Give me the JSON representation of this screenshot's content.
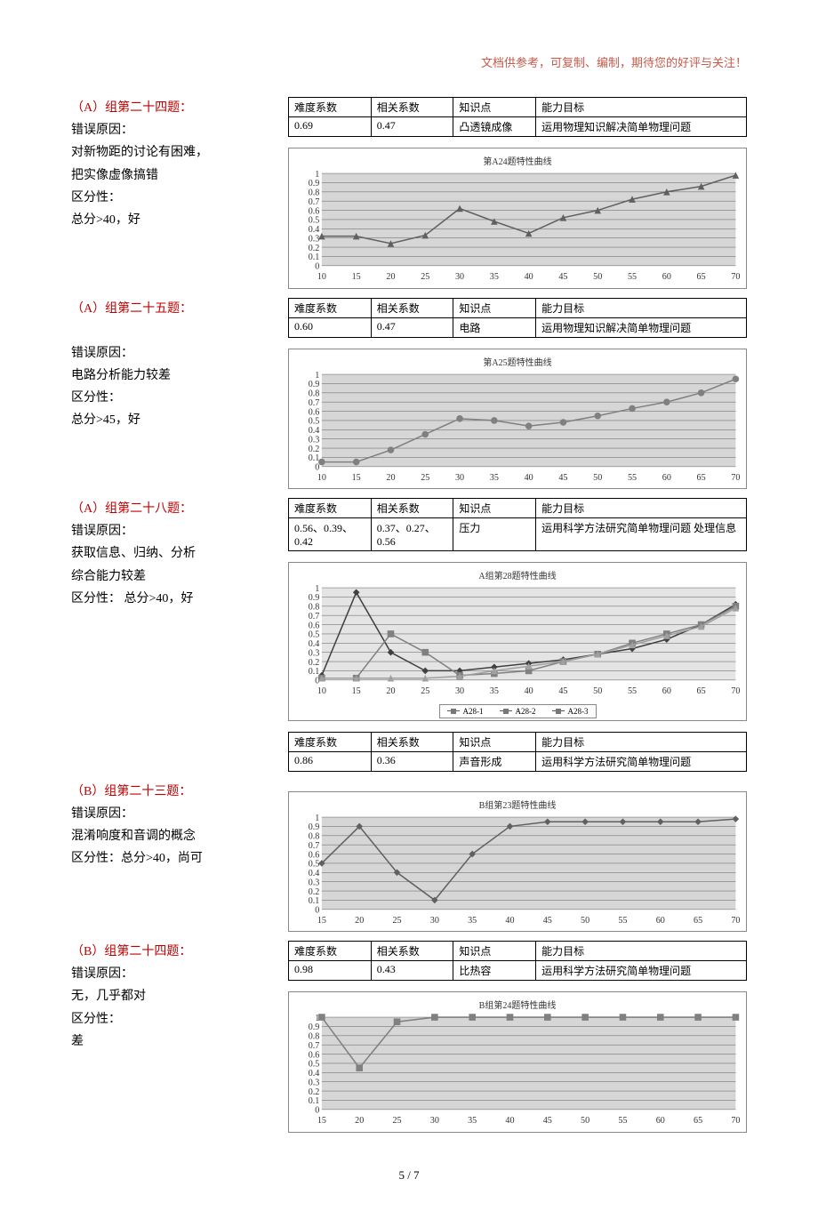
{
  "header_note": "文档供参考，可复制、编制，期待您的好评与关注！",
  "page_number": "5 / 7",
  "sections": [
    {
      "title": "（A）组第二十四题：",
      "lines": [
        "错误原因：",
        "对新物距的讨论有困难，",
        "把实像虚像搞错",
        "区分性：",
        "总分>40，好"
      ],
      "table_headers": [
        "难度系数",
        "相关系数",
        "知识点",
        "能力目标"
      ],
      "table_row": [
        "0.69",
        "0.47",
        "凸透镜成像",
        "运用物理知识解决简单物理问题"
      ],
      "chart": {
        "title": "第A24题特性曲线",
        "bg": "dark",
        "x": [
          10,
          15,
          20,
          25,
          30,
          35,
          40,
          45,
          50,
          55,
          60,
          65,
          70
        ],
        "series": [
          {
            "color": "#606060",
            "marker": "triangle",
            "y": [
              0.32,
              0.32,
              0.24,
              0.33,
              0.62,
              0.48,
              0.35,
              0.52,
              0.6,
              0.72,
              0.8,
              0.86,
              0.98
            ]
          }
        ],
        "ymax": 1.0
      }
    },
    {
      "title": "（A）组第二十五题：",
      "lines": [
        "",
        "错误原因：",
        "电路分析能力较差",
        "区分性：",
        "总分>45，好"
      ],
      "table_headers": [
        "难度系数",
        "相关系数",
        "知识点",
        "能力目标"
      ],
      "table_row": [
        "0.60",
        "0.47",
        "电路",
        "运用物理知识解决简单物理问题"
      ],
      "chart": {
        "title": "第A25题特性曲线",
        "bg": "dark",
        "x": [
          10,
          15,
          20,
          25,
          30,
          35,
          40,
          45,
          50,
          55,
          60,
          65,
          70
        ],
        "series": [
          {
            "color": "#808080",
            "marker": "circle",
            "y": [
              0.05,
              0.05,
              0.18,
              0.35,
              0.52,
              0.5,
              0.44,
              0.48,
              0.55,
              0.63,
              0.7,
              0.8,
              0.95
            ]
          }
        ],
        "ymax": 1.0
      }
    },
    {
      "title": "（A）组第二十八题：",
      "lines": [
        "错误原因：",
        "获取信息、归纳、分析",
        "综合能力较差",
        "区分性： 总分>40，好"
      ],
      "table_headers": [
        "难度系数",
        "相关系数",
        "知识点",
        "能力目标"
      ],
      "table_row": [
        "0.56、0.39、0.42",
        "0.37、0.27、0.56",
        "压力",
        "运用科学方法研究简单物理问题 处理信息"
      ],
      "chart": {
        "title": "A组第28题特性曲线",
        "bg": "light",
        "x": [
          10,
          15,
          20,
          25,
          30,
          35,
          40,
          45,
          50,
          55,
          60,
          65,
          70
        ],
        "series": [
          {
            "color": "#404040",
            "marker": "diamond",
            "y": [
              0.05,
              0.95,
              0.3,
              0.1,
              0.1,
              0.14,
              0.18,
              0.22,
              0.28,
              0.34,
              0.44,
              0.6,
              0.82
            ]
          },
          {
            "color": "#808080",
            "marker": "square",
            "y": [
              0.02,
              0.02,
              0.5,
              0.3,
              0.05,
              0.07,
              0.1,
              0.2,
              0.28,
              0.4,
              0.5,
              0.6,
              0.8
            ]
          },
          {
            "color": "#a0a0a0",
            "marker": "triangle",
            "y": [
              0.02,
              0.02,
              0.02,
              0.02,
              0.04,
              0.1,
              0.15,
              0.2,
              0.28,
              0.38,
              0.48,
              0.58,
              0.78
            ]
          }
        ],
        "ymax": 1.0,
        "legend": [
          "A28-1",
          "A28-2",
          "A28-3"
        ]
      },
      "table2_headers": [
        "难度系数",
        "相关系数",
        "知识点",
        "能力目标"
      ],
      "table2_row": [
        "0.86",
        "0.36",
        "声音形成",
        "运用科学方法研究简单物理问题"
      ]
    },
    {
      "title": "（B）组第二十三题：",
      "lines": [
        "错误原因：",
        "混淆响度和音调的概念",
        "区分性：总分>40，尚可"
      ],
      "chart": {
        "title": "B组第23题特性曲线",
        "bg": "dark",
        "x": [
          15,
          20,
          25,
          30,
          35,
          40,
          45,
          50,
          55,
          60,
          65,
          70
        ],
        "series": [
          {
            "color": "#606060",
            "marker": "diamond",
            "y": [
              0.5,
              0.9,
              0.4,
              0.1,
              0.6,
              0.9,
              0.95,
              0.95,
              0.95,
              0.95,
              0.95,
              0.98
            ]
          }
        ],
        "ymax": 1.0
      }
    },
    {
      "title": "（B）组第二十四题：",
      "lines": [
        "错误原因：",
        "无，几乎都对",
        "区分性：",
        "差"
      ],
      "table_headers": [
        "难度系数",
        "相关系数",
        "知识点",
        "能力目标"
      ],
      "table_row": [
        "0.98",
        "0.43",
        "比热容",
        "运用科学方法研究简单物理问题"
      ],
      "chart": {
        "title": "B组第24题特性曲线",
        "bg": "dark",
        "x": [
          15,
          20,
          25,
          30,
          35,
          40,
          45,
          50,
          55,
          60,
          65,
          70
        ],
        "series": [
          {
            "color": "#808080",
            "marker": "square",
            "y": [
              1.0,
              0.45,
              0.95,
              1.0,
              1.0,
              1.0,
              1.0,
              1.0,
              1.0,
              1.0,
              1.0,
              1.0
            ]
          }
        ],
        "ymax": 1.0
      }
    }
  ]
}
